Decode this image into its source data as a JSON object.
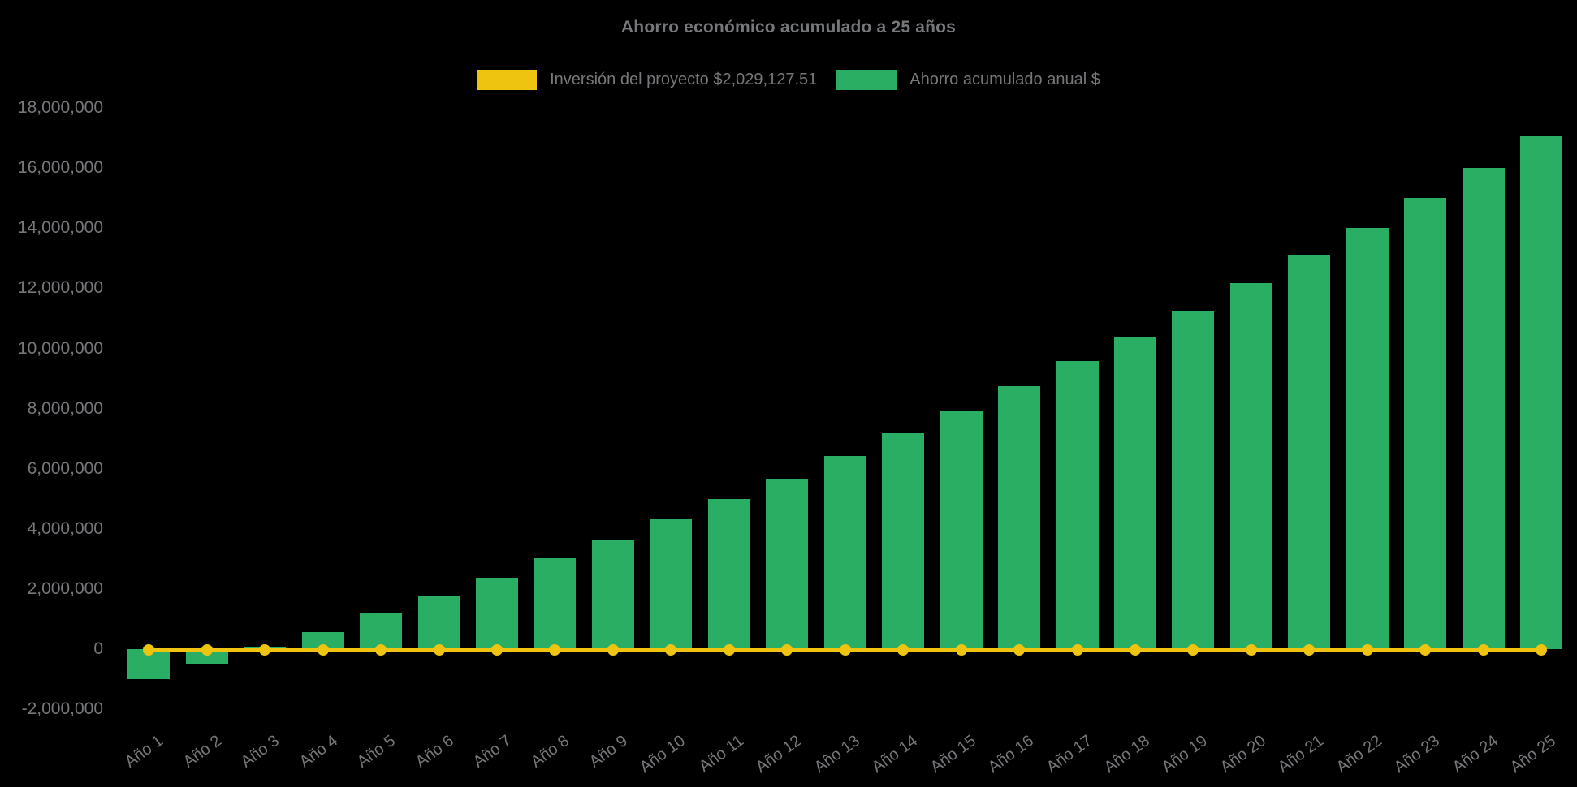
{
  "title": "Ahorro económico acumulado a 25 años",
  "colors": {
    "background": "#000000",
    "text": "#76777A",
    "investment_yellow": "#EEC411",
    "savings_green": "#2AAE63"
  },
  "chart_data": {
    "type": "bar",
    "title": "Ahorro económico acumulado a 25 años",
    "xlabel": "",
    "ylabel": "",
    "grid": false,
    "legend_position": "top",
    "ylim": [
      -2000000,
      18000000
    ],
    "y_tick_step": 2000000,
    "y_ticks": [
      "18,000,000",
      "16,000,000",
      "14,000,000",
      "12,000,000",
      "10,000,000",
      "8,000,000",
      "6,000,000",
      "4,000,000",
      "2,000,000",
      "0",
      "-2,000,000"
    ],
    "categories": [
      "Año 1",
      "Año 2",
      "Año 3",
      "Año 4",
      "Año 5",
      "Año 6",
      "Año 7",
      "Año 8",
      "Año 9",
      "Año 10",
      "Año 11",
      "Año 12",
      "Año 13",
      "Año 14",
      "Año 15",
      "Año 16",
      "Año 17",
      "Año 18",
      "Año 19",
      "Año 20",
      "Año 21",
      "Año 22",
      "Año 23",
      "Año 24",
      "Año 25"
    ],
    "series": [
      {
        "name": "Inversión del proyecto $2,029,127.51",
        "type": "line",
        "color": "#EEC411",
        "marker": "circle",
        "values": [
          0,
          0,
          0,
          0,
          0,
          0,
          0,
          0,
          0,
          0,
          0,
          0,
          0,
          0,
          0,
          0,
          0,
          0,
          0,
          0,
          0,
          0,
          0,
          0,
          0
        ]
      },
      {
        "name": "Ahorro acumulado anual $",
        "type": "bar",
        "color": "#2AAE63",
        "values": [
          -1010000,
          -490000,
          50000,
          580000,
          1210000,
          1760000,
          2340000,
          3020000,
          3630000,
          4320000,
          4990000,
          5670000,
          6420000,
          7180000,
          7920000,
          8750000,
          9580000,
          10390000,
          11250000,
          12170000,
          13110000,
          14010000,
          15000000,
          16010000,
          17060000
        ]
      }
    ]
  }
}
